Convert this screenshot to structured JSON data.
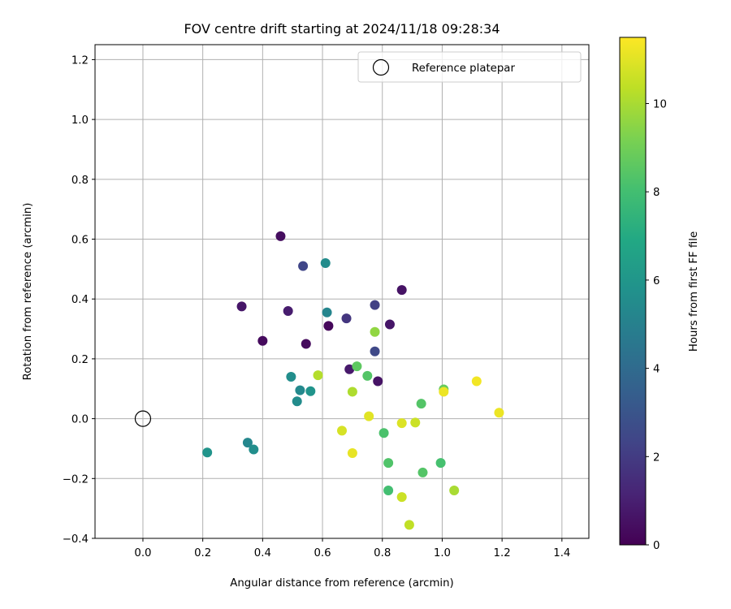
{
  "chart_data": {
    "type": "scatter",
    "title": "FOV centre drift starting at 2024/11/18 09:28:34",
    "xlabel": "Angular distance from reference (arcmin)",
    "ylabel": "Rotation from reference (arcmin)",
    "xlim": [
      -0.16,
      1.49
    ],
    "ylim": [
      -0.4,
      1.25
    ],
    "xticks": [
      0.0,
      0.2,
      0.4,
      0.6,
      0.8,
      1.0,
      1.2,
      1.4
    ],
    "xtick_labels": [
      "0.0",
      "0.2",
      "0.4",
      "0.6",
      "0.8",
      "1.0",
      "1.2",
      "1.4"
    ],
    "yticks": [
      -0.4,
      -0.2,
      0.0,
      0.2,
      0.4,
      0.6,
      0.8,
      1.0,
      1.2
    ],
    "ytick_labels": [
      "−0.4",
      "−0.2",
      "0.0",
      "0.2",
      "0.4",
      "0.6",
      "0.8",
      "1.0",
      "1.2"
    ],
    "grid": true,
    "legend": {
      "placement": "top-right",
      "label": "Reference platepar"
    },
    "reference_point": {
      "x": 0.0,
      "y": 0.0,
      "marker": "open-circle"
    },
    "colorbar": {
      "label": "Hours from first FF file",
      "colormap": "viridis",
      "range": [
        0,
        11.5
      ],
      "ticks": [
        0,
        2,
        4,
        6,
        8,
        10
      ],
      "tick_labels": [
        "0",
        "2",
        "4",
        "6",
        "8",
        "10"
      ]
    },
    "points": [
      {
        "x": 0.46,
        "y": 0.61,
        "hours": 0.4
      },
      {
        "x": 0.33,
        "y": 0.375,
        "hours": 0.7
      },
      {
        "x": 0.485,
        "y": 0.36,
        "hours": 0.9
      },
      {
        "x": 0.4,
        "y": 0.26,
        "hours": 0.3
      },
      {
        "x": 0.545,
        "y": 0.25,
        "hours": 0.3
      },
      {
        "x": 0.62,
        "y": 0.31,
        "hours": 0.2
      },
      {
        "x": 0.535,
        "y": 0.51,
        "hours": 2.4
      },
      {
        "x": 0.68,
        "y": 0.335,
        "hours": 1.8
      },
      {
        "x": 0.775,
        "y": 0.38,
        "hours": 2.2
      },
      {
        "x": 0.865,
        "y": 0.43,
        "hours": 0.6
      },
      {
        "x": 0.825,
        "y": 0.315,
        "hours": 0.7
      },
      {
        "x": 0.775,
        "y": 0.225,
        "hours": 2.5
      },
      {
        "x": 0.69,
        "y": 0.165,
        "hours": 0.8
      },
      {
        "x": 0.785,
        "y": 0.125,
        "hours": 0.6
      },
      {
        "x": 0.61,
        "y": 0.52,
        "hours": 5.5
      },
      {
        "x": 0.615,
        "y": 0.355,
        "hours": 5.2
      },
      {
        "x": 0.495,
        "y": 0.14,
        "hours": 5.6
      },
      {
        "x": 0.525,
        "y": 0.095,
        "hours": 5.4
      },
      {
        "x": 0.56,
        "y": 0.092,
        "hours": 5.9
      },
      {
        "x": 0.515,
        "y": 0.058,
        "hours": 5.5
      },
      {
        "x": 0.215,
        "y": -0.113,
        "hours": 5.9
      },
      {
        "x": 0.35,
        "y": -0.08,
        "hours": 5.3
      },
      {
        "x": 0.37,
        "y": -0.103,
        "hours": 5.6
      },
      {
        "x": 0.715,
        "y": 0.175,
        "hours": 8.6
      },
      {
        "x": 0.75,
        "y": 0.143,
        "hours": 8.4
      },
      {
        "x": 0.775,
        "y": 0.29,
        "hours": 9.6
      },
      {
        "x": 0.585,
        "y": 0.145,
        "hours": 10.2
      },
      {
        "x": 0.7,
        "y": 0.09,
        "hours": 10.1
      },
      {
        "x": 0.755,
        "y": 0.008,
        "hours": 11.0
      },
      {
        "x": 0.665,
        "y": -0.04,
        "hours": 10.8
      },
      {
        "x": 0.7,
        "y": -0.115,
        "hours": 11.1
      },
      {
        "x": 0.805,
        "y": -0.048,
        "hours": 8.2
      },
      {
        "x": 0.865,
        "y": -0.015,
        "hours": 10.9
      },
      {
        "x": 0.91,
        "y": -0.013,
        "hours": 10.6
      },
      {
        "x": 0.93,
        "y": 0.05,
        "hours": 8.4
      },
      {
        "x": 1.005,
        "y": 0.098,
        "hours": 8.8
      },
      {
        "x": 1.005,
        "y": 0.09,
        "hours": 11.2
      },
      {
        "x": 1.115,
        "y": 0.125,
        "hours": 11.3
      },
      {
        "x": 1.19,
        "y": 0.02,
        "hours": 11.2
      },
      {
        "x": 0.82,
        "y": -0.148,
        "hours": 8.3
      },
      {
        "x": 0.935,
        "y": -0.18,
        "hours": 8.4
      },
      {
        "x": 0.995,
        "y": -0.148,
        "hours": 8.1
      },
      {
        "x": 0.82,
        "y": -0.24,
        "hours": 8.0
      },
      {
        "x": 0.865,
        "y": -0.262,
        "hours": 10.6
      },
      {
        "x": 1.04,
        "y": -0.24,
        "hours": 10.0
      },
      {
        "x": 0.89,
        "y": -0.355,
        "hours": 10.4
      }
    ]
  }
}
